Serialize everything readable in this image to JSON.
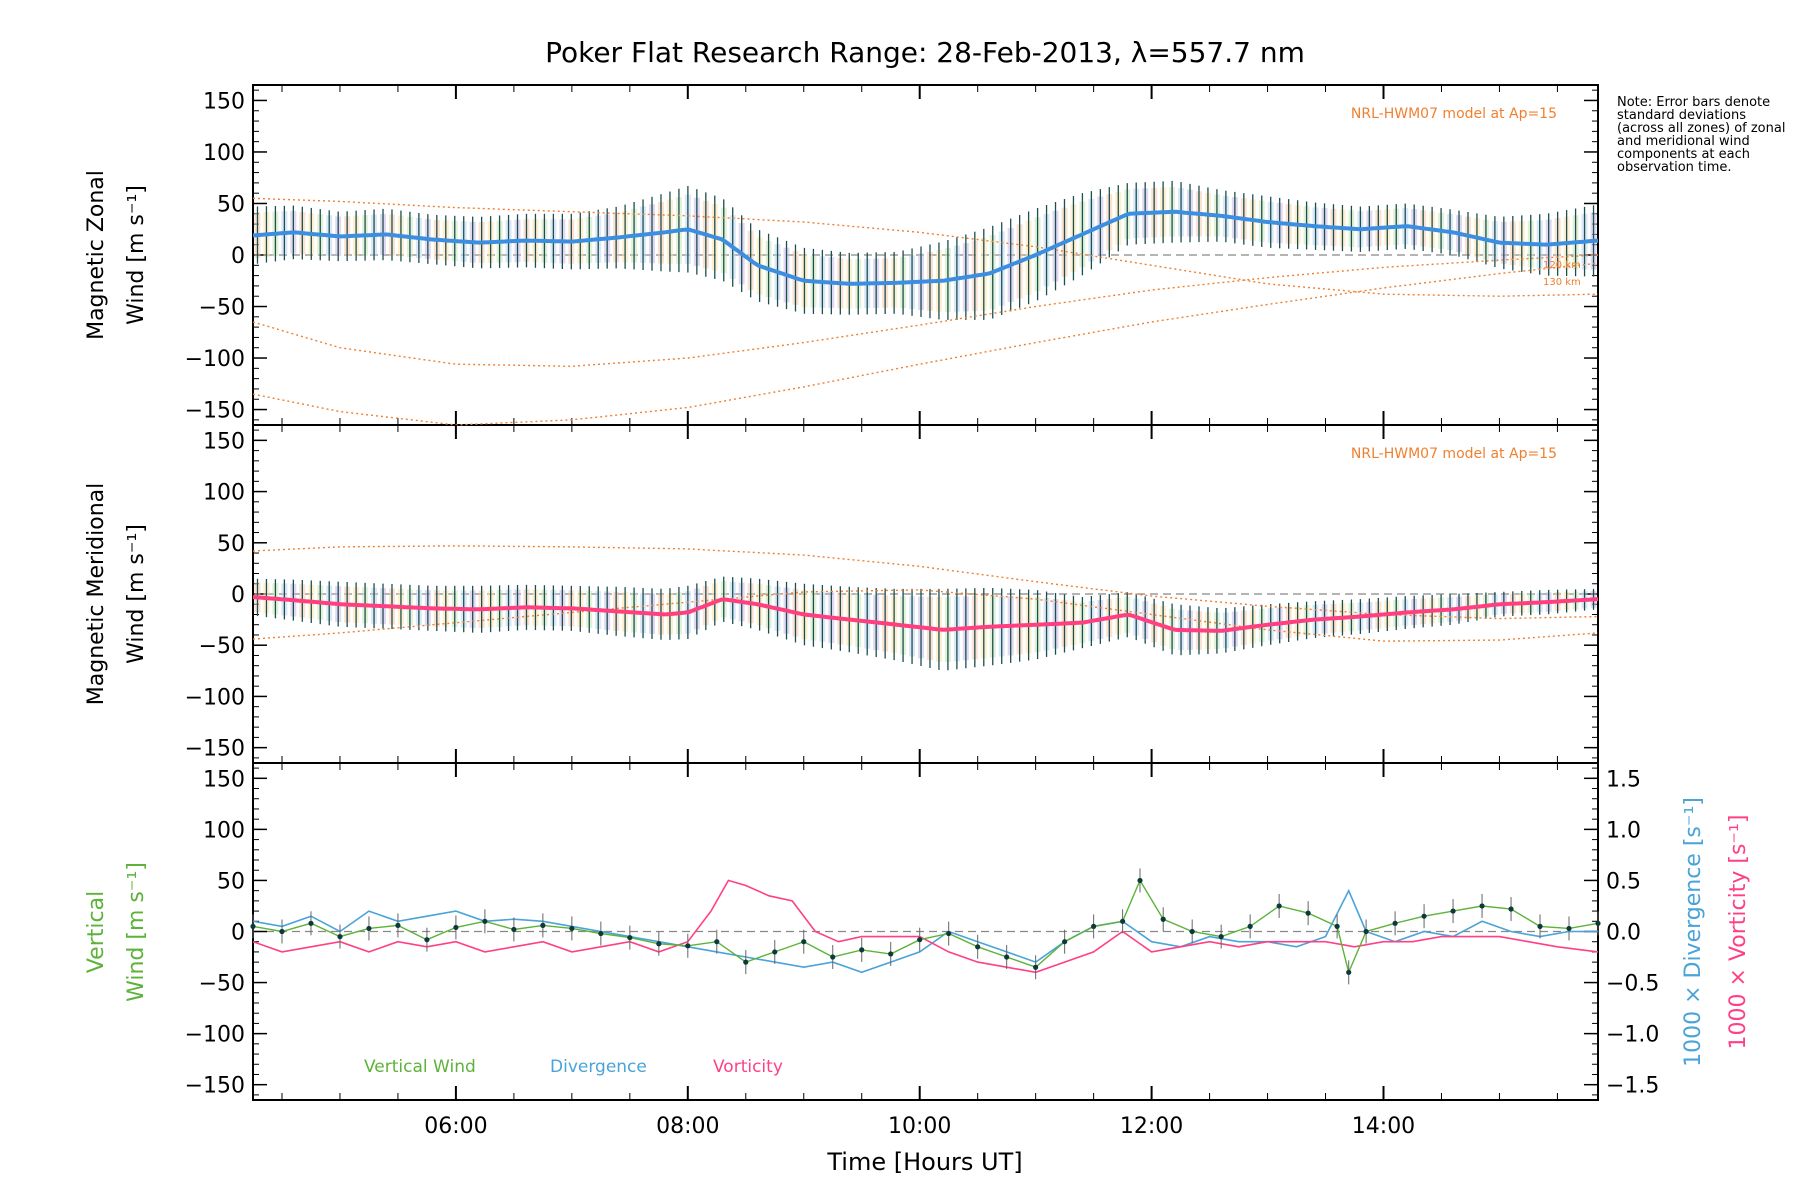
{
  "figure": {
    "title": "Poker Flat Research Range: 28-Feb-2013, λ=557.7 nm",
    "note": "Note: Error bars denote standard deviations (across all zones) of zonal and meridional wind components at each observation time.",
    "xlabel": "Time [Hours UT]"
  },
  "colors": {
    "zonal": "#3c8fe0",
    "meridional": "#ff3f7f",
    "vertical": "#5db33a",
    "divergence": "#4aa3d9",
    "vorticity": "#ff3f86",
    "model": "#f08030",
    "errorbar": "#1d4f4f"
  },
  "chart_data": [
    {
      "type": "line",
      "panel": "zonal",
      "ylabel": "Magnetic Zonal Wind [m s⁻¹]",
      "ylabel_line1": "Magnetic Zonal",
      "ylabel_line2": "Wind [m s⁻¹]",
      "xlim_hours": [
        4.25,
        15.85
      ],
      "ylim": [
        -165,
        165
      ],
      "yticks": [
        150,
        100,
        50,
        0,
        -50,
        -100,
        -150
      ],
      "xticks": [
        "06:00",
        "08:00",
        "10:00",
        "12:00",
        "14:00"
      ],
      "xtick_hours": [
        6,
        8,
        10,
        12,
        14
      ],
      "model_label": "NRL-HWM07 model at Ap=15",
      "model_annotations": [
        "120 km",
        "130 km"
      ],
      "series": [
        {
          "name": "Zonal wind (mean)",
          "x_hours": [
            4.25,
            4.6,
            5.0,
            5.4,
            5.8,
            6.2,
            6.6,
            7.0,
            7.4,
            7.8,
            8.0,
            8.3,
            8.6,
            9.0,
            9.4,
            9.8,
            10.2,
            10.6,
            11.0,
            11.4,
            11.8,
            12.2,
            12.6,
            13.0,
            13.4,
            13.8,
            14.2,
            14.6,
            15.0,
            15.4,
            15.85
          ],
          "values": [
            19,
            22,
            18,
            20,
            15,
            12,
            14,
            13,
            17,
            22,
            25,
            15,
            -10,
            -25,
            -28,
            -27,
            -25,
            -18,
            0,
            20,
            40,
            42,
            38,
            32,
            28,
            25,
            28,
            22,
            12,
            10,
            14
          ],
          "error": [
            28,
            26,
            24,
            25,
            24,
            25,
            26,
            27,
            30,
            38,
            42,
            40,
            35,
            32,
            30,
            30,
            38,
            45,
            45,
            40,
            30,
            30,
            25,
            25,
            23,
            22,
            22,
            22,
            25,
            30,
            35
          ]
        },
        {
          "name": "NRL-HWM07 120 km",
          "x_hours": [
            4.25,
            5.0,
            6.0,
            7.0,
            8.0,
            9.0,
            10.0,
            11.0,
            12.0,
            13.0,
            14.0,
            15.0,
            15.85
          ],
          "values": [
            -65,
            -90,
            -106,
            -108,
            -100,
            -85,
            -68,
            -50,
            -34,
            -22,
            -12,
            -5,
            0
          ]
        },
        {
          "name": "NRL-HWM07 130 km",
          "x_hours": [
            4.25,
            5.0,
            6.0,
            7.0,
            8.0,
            9.0,
            10.0,
            11.0,
            12.0,
            13.0,
            14.0,
            15.0,
            15.85
          ],
          "values": [
            -135,
            -152,
            -165,
            -160,
            -148,
            -128,
            -106,
            -85,
            -65,
            -48,
            -32,
            -18,
            -8
          ]
        },
        {
          "name": "NRL-HWM07 upper",
          "x_hours": [
            4.25,
            5.0,
            6.0,
            7.0,
            8.0,
            9.0,
            10.0,
            11.0,
            12.0,
            13.0,
            14.0,
            15.0,
            15.85
          ],
          "values": [
            55,
            52,
            46,
            42,
            38,
            32,
            22,
            8,
            -10,
            -28,
            -38,
            -40,
            -38
          ]
        }
      ]
    },
    {
      "type": "line",
      "panel": "meridional",
      "ylabel": "Magnetic Meridional Wind [m s⁻¹]",
      "ylabel_line1": "Magnetic Meridional",
      "ylabel_line2": "Wind [m s⁻¹]",
      "xlim_hours": [
        4.25,
        15.85
      ],
      "ylim": [
        -165,
        165
      ],
      "yticks": [
        150,
        100,
        50,
        0,
        -50,
        -100,
        -150
      ],
      "model_label": "NRL-HWM07 model at Ap=15",
      "series": [
        {
          "name": "Meridional wind (mean)",
          "x_hours": [
            4.25,
            4.6,
            5.0,
            5.4,
            5.8,
            6.2,
            6.6,
            7.0,
            7.4,
            7.8,
            8.0,
            8.3,
            8.6,
            9.0,
            9.4,
            9.8,
            10.2,
            10.6,
            11.0,
            11.4,
            11.8,
            12.2,
            12.6,
            13.0,
            13.4,
            13.8,
            14.2,
            14.6,
            15.0,
            15.4,
            15.85
          ],
          "values": [
            -3,
            -6,
            -10,
            -12,
            -14,
            -15,
            -13,
            -14,
            -17,
            -20,
            -18,
            -5,
            -10,
            -20,
            -25,
            -30,
            -35,
            -32,
            -30,
            -28,
            -20,
            -35,
            -36,
            -30,
            -25,
            -22,
            -18,
            -15,
            -10,
            -8,
            -5
          ],
          "error": [
            18,
            20,
            22,
            22,
            22,
            23,
            22,
            22,
            24,
            25,
            26,
            22,
            25,
            30,
            32,
            35,
            40,
            38,
            34,
            25,
            22,
            25,
            22,
            20,
            18,
            17,
            16,
            15,
            12,
            12,
            10
          ]
        },
        {
          "name": "NRL-HWM07 upper",
          "x_hours": [
            4.25,
            5.0,
            6.0,
            7.0,
            8.0,
            9.0,
            10.0,
            11.0,
            12.0,
            13.0,
            14.0,
            15.0,
            15.85
          ],
          "values": [
            42,
            46,
            47,
            46,
            44,
            38,
            27,
            12,
            -2,
            -12,
            -20,
            -24,
            -22
          ]
        },
        {
          "name": "NRL-HWM07 lower",
          "x_hours": [
            4.25,
            5.0,
            6.0,
            7.0,
            8.0,
            9.0,
            10.0,
            11.0,
            12.0,
            13.0,
            14.0,
            15.0,
            15.85
          ],
          "values": [
            -44,
            -38,
            -28,
            -18,
            -8,
            2,
            4,
            -5,
            -20,
            -35,
            -46,
            -45,
            -38
          ]
        }
      ]
    },
    {
      "type": "line",
      "panel": "vertical",
      "ylabel_line1": "Vertical",
      "ylabel_line2": "Wind [m s⁻¹]",
      "right_ylabel_divergence": "1000 × Divergence [s⁻¹]",
      "right_ylabel_vorticity": "1000 × Vorticity [s⁻¹]",
      "xlim_hours": [
        4.25,
        15.85
      ],
      "ylim": [
        -165,
        165
      ],
      "yticks": [
        150,
        100,
        50,
        0,
        -50,
        -100,
        -150
      ],
      "y2lim": [
        -1.65,
        1.65
      ],
      "y2ticks": [
        1.5,
        1.0,
        0.5,
        0.0,
        -0.5,
        -1.0,
        -1.5
      ],
      "y2tick_labels": [
        "1.5",
        "1.0",
        "0.5",
        "0.0",
        "−0.5",
        "−1.0",
        "−1.5"
      ],
      "legend": [
        "Vertical Wind",
        "Divergence",
        "Vorticity"
      ],
      "series": [
        {
          "name": "Vertical Wind",
          "x_hours": [
            4.25,
            4.5,
            4.75,
            5.0,
            5.25,
            5.5,
            5.75,
            6.0,
            6.25,
            6.5,
            6.75,
            7.0,
            7.25,
            7.5,
            7.75,
            8.0,
            8.25,
            8.5,
            8.75,
            9.0,
            9.25,
            9.5,
            9.75,
            10.0,
            10.25,
            10.5,
            10.75,
            11.0,
            11.25,
            11.5,
            11.75,
            11.9,
            12.1,
            12.35,
            12.6,
            12.85,
            13.1,
            13.35,
            13.6,
            13.7,
            13.85,
            14.1,
            14.35,
            14.6,
            14.85,
            15.1,
            15.35,
            15.6,
            15.85
          ],
          "values": [
            5,
            0,
            8,
            -5,
            3,
            6,
            -8,
            4,
            10,
            2,
            6,
            3,
            -2,
            -6,
            -12,
            -14,
            -10,
            -30,
            -20,
            -10,
            -25,
            -18,
            -22,
            -8,
            -2,
            -15,
            -25,
            -35,
            -10,
            5,
            10,
            50,
            12,
            0,
            -5,
            5,
            25,
            18,
            5,
            -40,
            0,
            8,
            15,
            20,
            25,
            22,
            5,
            3,
            8
          ]
        },
        {
          "name": "Divergence",
          "x_hours": [
            4.25,
            4.5,
            4.75,
            5.0,
            5.25,
            5.5,
            5.75,
            6.0,
            6.25,
            6.5,
            6.75,
            7.0,
            7.25,
            7.5,
            7.75,
            8.0,
            8.25,
            8.5,
            8.75,
            9.0,
            9.25,
            9.5,
            9.75,
            10.0,
            10.25,
            10.5,
            10.75,
            11.0,
            11.25,
            11.5,
            11.75,
            12.0,
            12.25,
            12.5,
            12.75,
            13.0,
            13.25,
            13.5,
            13.7,
            13.85,
            14.1,
            14.35,
            14.6,
            14.85,
            15.1,
            15.35,
            15.6,
            15.85
          ],
          "values": [
            0.1,
            0.05,
            0.15,
            0.0,
            0.2,
            0.1,
            0.15,
            0.2,
            0.1,
            0.12,
            0.1,
            0.05,
            0.0,
            -0.05,
            -0.1,
            -0.15,
            -0.2,
            -0.25,
            -0.3,
            -0.35,
            -0.3,
            -0.4,
            -0.3,
            -0.2,
            0.0,
            -0.1,
            -0.2,
            -0.3,
            -0.1,
            0.05,
            0.1,
            -0.1,
            -0.15,
            -0.05,
            -0.1,
            -0.1,
            -0.15,
            -0.05,
            0.4,
            0.0,
            -0.1,
            0.0,
            -0.05,
            0.1,
            0.0,
            -0.05,
            0.0,
            0.0
          ]
        },
        {
          "name": "Vorticity",
          "x_hours": [
            4.25,
            4.5,
            4.75,
            5.0,
            5.25,
            5.5,
            5.75,
            6.0,
            6.25,
            6.5,
            6.75,
            7.0,
            7.25,
            7.5,
            7.75,
            8.0,
            8.2,
            8.35,
            8.5,
            8.7,
            8.9,
            9.1,
            9.3,
            9.5,
            9.75,
            10.0,
            10.25,
            10.5,
            10.75,
            11.0,
            11.25,
            11.5,
            11.75,
            12.0,
            12.25,
            12.5,
            12.75,
            13.0,
            13.25,
            13.5,
            13.75,
            14.0,
            14.25,
            14.5,
            14.75,
            15.0,
            15.25,
            15.5,
            15.85
          ],
          "values": [
            -0.1,
            -0.2,
            -0.15,
            -0.1,
            -0.2,
            -0.1,
            -0.15,
            -0.1,
            -0.2,
            -0.15,
            -0.1,
            -0.2,
            -0.15,
            -0.1,
            -0.2,
            -0.1,
            0.2,
            0.5,
            0.45,
            0.35,
            0.3,
            0.0,
            -0.1,
            -0.05,
            -0.05,
            -0.05,
            -0.2,
            -0.3,
            -0.35,
            -0.4,
            -0.3,
            -0.2,
            0.0,
            -0.2,
            -0.15,
            -0.1,
            -0.15,
            -0.1,
            -0.1,
            -0.1,
            -0.15,
            -0.1,
            -0.1,
            -0.05,
            -0.05,
            -0.05,
            -0.1,
            -0.15,
            -0.2
          ]
        }
      ]
    }
  ]
}
